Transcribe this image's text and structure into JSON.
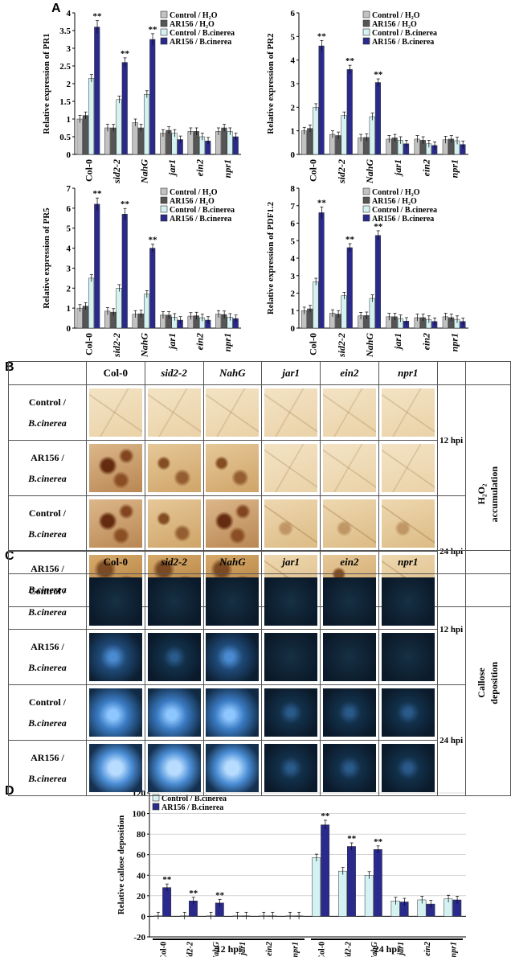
{
  "panel_labels": {
    "a": "A",
    "b": "B",
    "c": "C",
    "d": "D"
  },
  "colors": {
    "control_h2o": "#c2c2c2",
    "ar156_h2o": "#555555",
    "control_bc": "#d4f2f2",
    "ar156_bc": "#2a2a8c"
  },
  "legend_entries": {
    "control_h2o": "Control / H₂O",
    "ar156_h2o": "AR156 / H₂O",
    "control_bc": "Control / B.cinerea",
    "ar156_bc": "AR156 / B.cinerea"
  },
  "significance_mark": "**",
  "chart_data": [
    {
      "type": "bar",
      "panel": "A1",
      "ylabel": "Relative expression of PR1",
      "ylim": [
        0,
        4
      ],
      "yticks": [
        0,
        0.5,
        1,
        1.5,
        2,
        2.5,
        3,
        3.5,
        4
      ],
      "categories": [
        "Col-0",
        "sid2-2",
        "NahG",
        "jar1",
        "ein2",
        "npr1"
      ],
      "series": [
        {
          "name": "Control / H2O",
          "values": [
            1.0,
            0.75,
            0.9,
            0.6,
            0.65,
            0.65
          ]
        },
        {
          "name": "AR156 / H2O",
          "values": [
            1.1,
            0.75,
            0.75,
            0.68,
            0.65,
            0.75
          ]
        },
        {
          "name": "Control / B.cinerea",
          "values": [
            2.15,
            1.55,
            1.7,
            0.6,
            0.5,
            0.65
          ]
        },
        {
          "name": "AR156 / B.cinerea",
          "values": [
            3.6,
            2.6,
            3.25,
            0.42,
            0.38,
            0.5
          ]
        }
      ],
      "significant": [
        true,
        true,
        true,
        false,
        false,
        false
      ]
    },
    {
      "type": "bar",
      "panel": "A2",
      "ylabel": "Relative expression of PR2",
      "ylim": [
        0,
        6
      ],
      "yticks": [
        0,
        1,
        2,
        3,
        4,
        5,
        6
      ],
      "categories": [
        "Col-0",
        "sid2-2",
        "NahG",
        "jar1",
        "ein2",
        "npr1"
      ],
      "series": [
        {
          "name": "Control / H2O",
          "values": [
            1.0,
            0.85,
            0.7,
            0.65,
            0.65,
            0.62
          ]
        },
        {
          "name": "AR156 / H2O",
          "values": [
            1.1,
            0.8,
            0.72,
            0.7,
            0.6,
            0.65
          ]
        },
        {
          "name": "Control / B.cinerea",
          "values": [
            2.0,
            1.65,
            1.6,
            0.6,
            0.45,
            0.58
          ]
        },
        {
          "name": "AR156 / B.cinerea",
          "values": [
            4.6,
            3.6,
            3.05,
            0.45,
            0.38,
            0.42
          ]
        }
      ],
      "significant": [
        true,
        true,
        true,
        false,
        false,
        false
      ]
    },
    {
      "type": "bar",
      "panel": "A3",
      "ylabel": "Relative expression of PR5",
      "ylim": [
        0,
        7
      ],
      "yticks": [
        0,
        1,
        2,
        3,
        4,
        5,
        6,
        7
      ],
      "categories": [
        "Col-0",
        "sid2-2",
        "NahG",
        "jar1",
        "ein2",
        "npr1"
      ],
      "series": [
        {
          "name": "Control / H2O",
          "values": [
            1.0,
            0.85,
            0.7,
            0.65,
            0.6,
            0.7
          ]
        },
        {
          "name": "AR156 / H2O",
          "values": [
            1.1,
            0.8,
            0.72,
            0.65,
            0.62,
            0.68
          ]
        },
        {
          "name": "Control / B.cinerea",
          "values": [
            2.5,
            2.0,
            1.7,
            0.55,
            0.52,
            0.55
          ]
        },
        {
          "name": "AR156 / B.cinerea",
          "values": [
            6.2,
            5.7,
            4.0,
            0.4,
            0.4,
            0.48
          ]
        }
      ],
      "significant": [
        true,
        true,
        true,
        false,
        false,
        false
      ]
    },
    {
      "type": "bar",
      "panel": "A4",
      "ylabel": "Relative expression of PDF1.2",
      "ylim": [
        0,
        8
      ],
      "yticks": [
        0,
        1,
        2,
        3,
        4,
        5,
        6,
        7,
        8
      ],
      "categories": [
        "Col-0",
        "sid2-2",
        "NahG",
        "jar1",
        "ein2",
        "npr1"
      ],
      "series": [
        {
          "name": "Control / H2O",
          "values": [
            1.0,
            0.85,
            0.7,
            0.65,
            0.6,
            0.65
          ]
        },
        {
          "name": "AR156 / H2O",
          "values": [
            1.1,
            0.8,
            0.72,
            0.65,
            0.6,
            0.6
          ]
        },
        {
          "name": "Control / B.cinerea",
          "values": [
            2.65,
            1.85,
            1.7,
            0.55,
            0.5,
            0.5
          ]
        },
        {
          "name": "AR156 / B.cinerea",
          "values": [
            6.6,
            4.6,
            5.3,
            0.4,
            0.38,
            0.38
          ]
        }
      ],
      "significant": [
        true,
        true,
        true,
        false,
        false,
        false
      ]
    },
    {
      "type": "bar",
      "panel": "D",
      "ylabel": "Relative callose deposition",
      "ylim": [
        -20,
        120
      ],
      "yticks": [
        -20,
        0,
        20,
        40,
        60,
        80,
        100,
        120
      ],
      "categories": [
        "Col-0",
        "sid2-2",
        "NahG",
        "jar1",
        "ein2",
        "npr1",
        "Col-0",
        "sid2-2",
        "NahG",
        "jar1",
        "ein2",
        "npr1"
      ],
      "groups": [
        {
          "label": "12 hpi",
          "count": 6
        },
        {
          "label": "24 hpi",
          "count": 6
        }
      ],
      "series": [
        {
          "name": "Control / B.cinerea",
          "values": [
            0.5,
            0.5,
            0.5,
            0.5,
            0.5,
            0.5,
            57,
            44,
            40,
            15,
            16,
            17
          ]
        },
        {
          "name": "AR156 / B.cinerea",
          "values": [
            28,
            15,
            13,
            0.5,
            0.5,
            0.5,
            89,
            68,
            65,
            14,
            12,
            16
          ]
        }
      ],
      "significant": [
        true,
        true,
        true,
        false,
        false,
        false,
        true,
        true,
        true,
        false,
        false,
        false
      ]
    }
  ],
  "image_grid_b": {
    "columns": [
      "Col-0",
      "sid2-2",
      "NahG",
      "jar1",
      "ein2",
      "npr1"
    ],
    "rows": [
      {
        "line1": "Control /",
        "line2": "B.cinerea"
      },
      {
        "line1": "AR156 /",
        "line2": "B.cinerea"
      },
      {
        "line1": "Control /",
        "line2": "B.cinerea"
      },
      {
        "line1": "AR156 /",
        "line2": "B.cinerea"
      }
    ],
    "time_labels": [
      "12 hpi",
      "24 hpi"
    ],
    "side_line1": "H₂O₂",
    "side_line2": "accumulation"
  },
  "image_grid_c": {
    "columns": [
      "Col-0",
      "sid2-2",
      "NahG",
      "jar1",
      "ein2",
      "npr1"
    ],
    "rows": [
      {
        "line1": "Control /",
        "line2": "B.cinerea"
      },
      {
        "line1": "AR156 /",
        "line2": "B.cinerea"
      },
      {
        "line1": "Control /",
        "line2": "B.cinerea"
      },
      {
        "line1": "AR156 /",
        "line2": "B.cinerea"
      }
    ],
    "time_labels": [
      "12 hpi",
      "24 hpi"
    ],
    "side_line1": "Callose",
    "side_line2": "deposition"
  }
}
